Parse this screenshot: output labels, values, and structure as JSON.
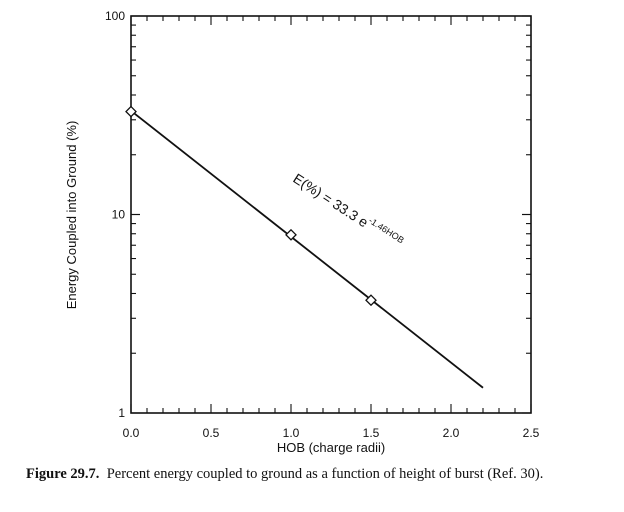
{
  "chart_data": {
    "type": "line",
    "scale": "log-y",
    "xlabel": "HOB (charge radii)",
    "ylabel": "Energy Coupled into Ground (%)",
    "xlim": [
      0.0,
      2.5
    ],
    "ylim": [
      1,
      100
    ],
    "x_ticks": [
      "0.0",
      "0.5",
      "1.0",
      "1.5",
      "2.0",
      "2.5"
    ],
    "y_ticks": [
      "1",
      "10",
      "100"
    ],
    "x_tick_values": [
      0,
      0.5,
      1,
      1.5,
      2,
      2.5
    ],
    "y_tick_values": [
      1,
      10,
      100
    ],
    "fit_line": {
      "name": "fit",
      "x": [
        0.0,
        2.2
      ],
      "y": [
        33.3,
        1.34
      ]
    },
    "points": {
      "name": "data",
      "marker": "diamond",
      "x": [
        0.0,
        1.0,
        1.5
      ],
      "y": [
        33.0,
        7.9,
        3.7
      ]
    },
    "equation": {
      "prefix": "E(%) = 33.3 e",
      "exponent": "-1.46HOB"
    }
  },
  "caption": {
    "label": "Figure 29.7.",
    "text": "Percent energy coupled to ground as a function of height of burst (Ref. 30)."
  }
}
